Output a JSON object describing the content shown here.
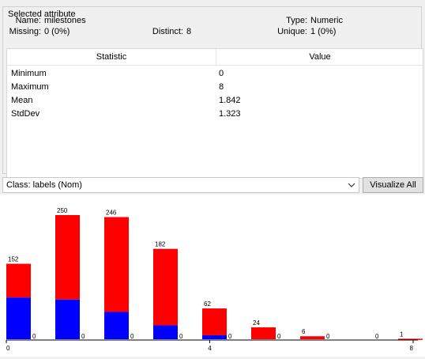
{
  "selected_attribute": {
    "legend": "Selected attribute",
    "name_label": "Name:",
    "name_value": "milestones",
    "type_label": "Type:",
    "type_value": "Numeric",
    "missing_label": "Missing:",
    "missing_value": "0 (0%)",
    "distinct_label": "Distinct:",
    "distinct_value": "8",
    "unique_label": "Unique:",
    "unique_value": "1 (0%)"
  },
  "stats_table": {
    "headers": [
      "Statistic",
      "Value"
    ],
    "rows": [
      {
        "stat": "Minimum",
        "value": "0"
      },
      {
        "stat": "Maximum",
        "value": "8"
      },
      {
        "stat": "Mean",
        "value": "1.842"
      },
      {
        "stat": "StdDev",
        "value": "1.323"
      }
    ]
  },
  "class_selector": {
    "selected": "Class: labels (Nom)"
  },
  "visualize_all_label": "Visualize All",
  "colors": {
    "red": "#ff0000",
    "blue": "#0000ff"
  },
  "chart_data": {
    "type": "bar",
    "stacked": true,
    "categories": [
      "bin1",
      "bin2",
      "bin3",
      "bin4",
      "bin5",
      "bin6",
      "bin7",
      "bin8",
      "bin9"
    ],
    "totals": [
      152,
      250,
      246,
      182,
      62,
      24,
      6,
      0,
      1
    ],
    "series": [
      {
        "name": "blue",
        "values": [
          84,
          80,
          55,
          28,
          8,
          0,
          0,
          0,
          0
        ]
      },
      {
        "name": "red",
        "values": [
          68,
          170,
          191,
          154,
          54,
          24,
          6,
          0,
          1
        ]
      }
    ],
    "zero_labels": [
      "0",
      "0",
      "0",
      "0",
      "0",
      "0",
      "0",
      "0",
      ""
    ],
    "xaxis_labels": [
      "0",
      "4",
      "8"
    ],
    "xlim": [
      0,
      8
    ],
    "ylim": [
      0,
      250
    ]
  }
}
